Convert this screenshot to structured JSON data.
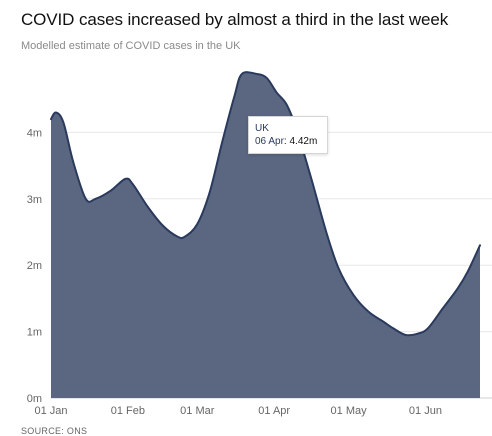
{
  "chart_data": {
    "type": "area",
    "title": "COVID cases increased by almost a third in the last week",
    "subtitle": "Modelled estimate of COVID cases in the UK",
    "source": "SOURCE: ONS",
    "series": [
      {
        "name": "UK",
        "color": "#2a3a5c",
        "fill": "#5b6781",
        "points": [
          {
            "x": "2022-01-01",
            "y": 4.2
          },
          {
            "x": "2022-01-03",
            "y": 4.3
          },
          {
            "x": "2022-01-06",
            "y": 4.15
          },
          {
            "x": "2022-01-10",
            "y": 3.55
          },
          {
            "x": "2022-01-15",
            "y": 3.0
          },
          {
            "x": "2022-01-19",
            "y": 3.0
          },
          {
            "x": "2022-01-25",
            "y": 3.12
          },
          {
            "x": "2022-01-31",
            "y": 3.3
          },
          {
            "x": "2022-02-03",
            "y": 3.22
          },
          {
            "x": "2022-02-09",
            "y": 2.88
          },
          {
            "x": "2022-02-15",
            "y": 2.6
          },
          {
            "x": "2022-02-21",
            "y": 2.43
          },
          {
            "x": "2022-02-24",
            "y": 2.43
          },
          {
            "x": "2022-03-01",
            "y": 2.62
          },
          {
            "x": "2022-03-06",
            "y": 3.1
          },
          {
            "x": "2022-03-11",
            "y": 3.85
          },
          {
            "x": "2022-03-16",
            "y": 4.55
          },
          {
            "x": "2022-03-19",
            "y": 4.88
          },
          {
            "x": "2022-03-25",
            "y": 4.88
          },
          {
            "x": "2022-03-29",
            "y": 4.82
          },
          {
            "x": "2022-04-02",
            "y": 4.6
          },
          {
            "x": "2022-04-06",
            "y": 4.42
          },
          {
            "x": "2022-04-10",
            "y": 4.05
          },
          {
            "x": "2022-04-16",
            "y": 3.3
          },
          {
            "x": "2022-04-22",
            "y": 2.5
          },
          {
            "x": "2022-04-27",
            "y": 1.95
          },
          {
            "x": "2022-05-03",
            "y": 1.55
          },
          {
            "x": "2022-05-09",
            "y": 1.3
          },
          {
            "x": "2022-05-15",
            "y": 1.15
          },
          {
            "x": "2022-05-19",
            "y": 1.05
          },
          {
            "x": "2022-05-24",
            "y": 0.95
          },
          {
            "x": "2022-05-29",
            "y": 0.97
          },
          {
            "x": "2022-06-02",
            "y": 1.05
          },
          {
            "x": "2022-06-08",
            "y": 1.35
          },
          {
            "x": "2022-06-14",
            "y": 1.65
          },
          {
            "x": "2022-06-18",
            "y": 1.9
          },
          {
            "x": "2022-06-23",
            "y": 2.3
          }
        ]
      }
    ],
    "x_ticks": [
      {
        "label": "01 Jan",
        "date": "2022-01-01"
      },
      {
        "label": "01 Feb",
        "date": "2022-02-01"
      },
      {
        "label": "01 Mar",
        "date": "2022-03-01"
      },
      {
        "label": "01 Apr",
        "date": "2022-04-01"
      },
      {
        "label": "01 May",
        "date": "2022-05-01"
      },
      {
        "label": "01 Jun",
        "date": "2022-06-01"
      }
    ],
    "y_ticks": [
      {
        "label": "0m",
        "value": 0
      },
      {
        "label": "1m",
        "value": 1
      },
      {
        "label": "2m",
        "value": 2
      },
      {
        "label": "3m",
        "value": 3
      },
      {
        "label": "4m",
        "value": 4
      }
    ],
    "xlim": [
      "2022-01-01",
      "2022-06-23"
    ],
    "ylim": [
      0,
      5
    ],
    "grid": true,
    "tooltip": {
      "series": "UK",
      "date": "06 Apr",
      "value_label": "4.42m",
      "x": "2022-04-06",
      "y": 4.42
    }
  }
}
